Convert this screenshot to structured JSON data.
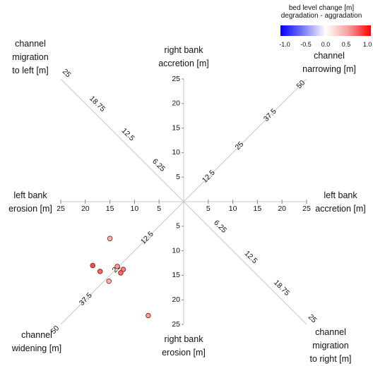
{
  "legend": {
    "title": "bed level change [m]\ndegradation - aggradation",
    "ticks": [
      "-1.0",
      "-0.5",
      "0.0",
      "0.5",
      "1.0"
    ],
    "tick_values": [
      -1.0,
      -0.5,
      0.0,
      0.5,
      1.0
    ],
    "colors": {
      "min": "#0000ff",
      "mid": "#ffffff",
      "max": "#ff0000"
    }
  },
  "direction_labels": {
    "top": "right bank\naccretion [m]",
    "bottom": "right bank\nerosion [m]",
    "left": "left bank\nerosion [m]",
    "right": "left bank\naccretion [m]",
    "top_left": "channel\nmigration\nto left [m]",
    "top_right": "channel\nnarrowing [m]",
    "bottom_left": "channel\nwidening [m]",
    "bottom_right": "channel\nmigration\nto right [m]"
  },
  "chart_data": {
    "type": "scatter",
    "axes": {
      "vertical_up": {
        "ticks": [
          "5",
          "10",
          "15",
          "20",
          "25"
        ],
        "max": 25
      },
      "vertical_down": {
        "ticks": [
          "5",
          "10",
          "15",
          "20",
          "25"
        ],
        "max": 25
      },
      "horizontal_left": {
        "ticks": [
          "5",
          "10",
          "15",
          "20",
          "25"
        ],
        "max": 25
      },
      "horizontal_right": {
        "ticks": [
          "5",
          "10",
          "15",
          "20",
          "25"
        ],
        "max": 25
      },
      "diag_top_left": {
        "ticks": [
          "6.25",
          "12.5",
          "18.75",
          "25"
        ],
        "max": 25
      },
      "diag_bottom_right": {
        "ticks": [
          "6.25",
          "12.5",
          "18.75",
          "25"
        ],
        "max": 25
      },
      "diag_top_right": {
        "ticks": [
          "12.5",
          "25",
          "37.5",
          "50"
        ],
        "max": 50
      },
      "diag_bottom_left": {
        "ticks": [
          "12.5",
          "25",
          "37.5",
          "50"
        ],
        "max": 50
      }
    },
    "points": [
      {
        "left_bank_erosion": 15,
        "right_bank_erosion": 7.5,
        "bed_level_change": 0.3
      },
      {
        "left_bank_erosion": 18.5,
        "right_bank_erosion": 13,
        "bed_level_change": 0.7
      },
      {
        "left_bank_erosion": 17,
        "right_bank_erosion": 14.2,
        "bed_level_change": 0.6
      },
      {
        "left_bank_erosion": 13.5,
        "right_bank_erosion": 13.2,
        "bed_level_change": 0.4
      },
      {
        "left_bank_erosion": 12.3,
        "right_bank_erosion": 13.8,
        "bed_level_change": 0.5
      },
      {
        "left_bank_erosion": 12.8,
        "right_bank_erosion": 14.5,
        "bed_level_change": 0.6
      },
      {
        "left_bank_erosion": 15.2,
        "right_bank_erosion": 16.2,
        "bed_level_change": 0.3
      },
      {
        "left_bank_erosion": 7.2,
        "right_bank_erosion": 23.2,
        "bed_level_change": 0.4
      }
    ]
  }
}
